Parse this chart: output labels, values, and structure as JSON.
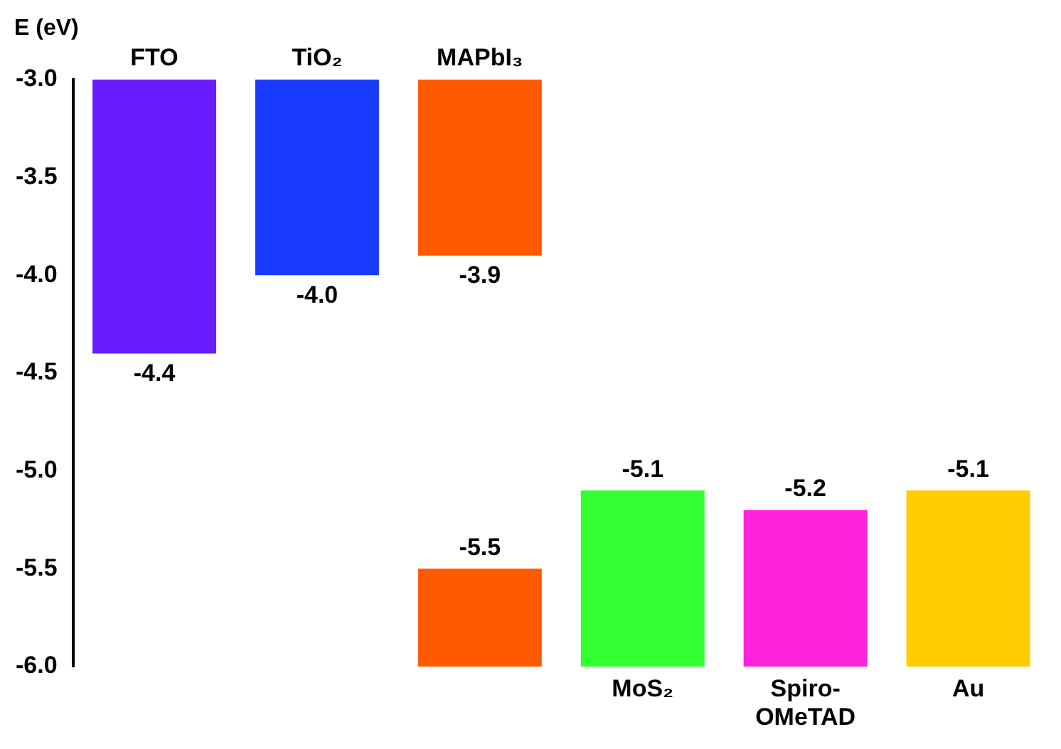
{
  "chart_data": {
    "type": "bar",
    "ylabel": "E (eV)",
    "categories": [
      "FTO",
      "TiO₂",
      "MAPbI₃",
      "MoS₂",
      "Spiro-OMeTAD",
      "Au"
    ],
    "series": [
      {
        "colors": [
          "#6a1cff",
          "#1a3cff",
          "#ff5a00",
          null,
          null,
          null
        ],
        "base": [
          -3.0,
          -3.0,
          -3.0,
          null,
          null,
          null
        ],
        "values": [
          -1.4,
          -1.0,
          -0.9,
          null,
          null,
          null
        ],
        "value_labels": [
          "-4.4",
          "-4.0",
          "-3.9",
          null,
          null,
          null
        ]
      },
      {
        "colors": [
          null,
          null,
          "#ff5a00",
          "#33ff33",
          "#ff22dd",
          "#ffcc00"
        ],
        "base": [
          null,
          null,
          -6.0,
          -6.0,
          -6.0,
          -6.0
        ],
        "values": [
          null,
          null,
          0.5,
          0.9,
          0.8,
          0.9
        ],
        "value_labels": [
          null,
          null,
          "-5.5",
          "-5.1",
          "-5.2",
          "-5.1"
        ]
      }
    ],
    "ylim": [
      -6.0,
      -3.0
    ],
    "yticks": [
      {
        "value": -6.0,
        "label": "-6.0"
      },
      {
        "value": -5.5,
        "label": "-5.5"
      },
      {
        "value": -5.0,
        "label": "-5.0"
      },
      {
        "value": -4.5,
        "label": "-4.5"
      },
      {
        "value": -4.0,
        "label": "-4.0"
      },
      {
        "value": -3.5,
        "label": "-3.5"
      },
      {
        "value": -3.0,
        "label": "-3.0"
      }
    ],
    "grid": false,
    "legend": false
  }
}
